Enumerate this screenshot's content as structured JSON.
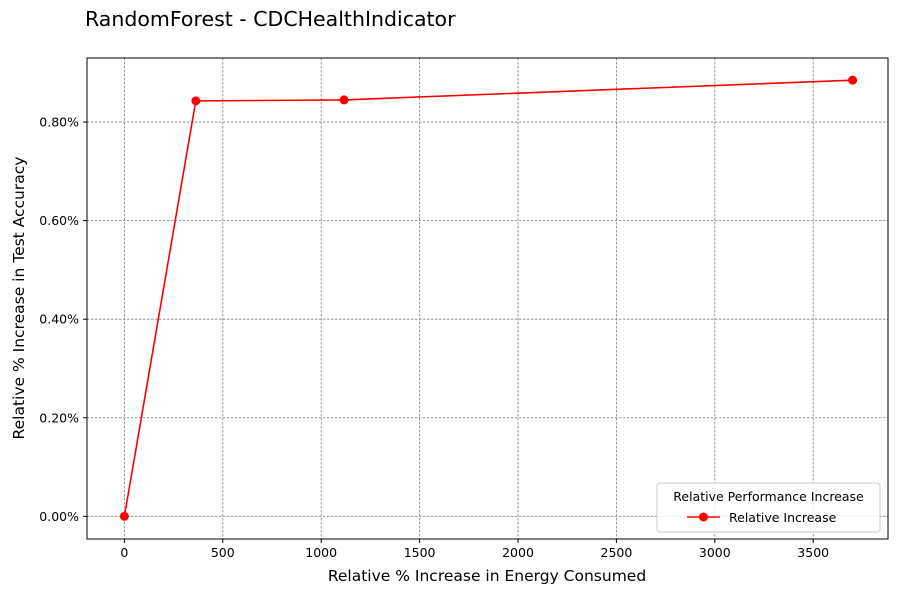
{
  "chart_data": {
    "type": "line",
    "title": "RandomForest - CDCHealthIndicator",
    "xlabel": "Relative % Increase in Energy Consumed",
    "ylabel": "Relative % Increase in Test Accuracy",
    "xlim": [
      -190,
      3880
    ],
    "ylim": [
      -0.046,
      0.93
    ],
    "x_ticks": [
      0,
      500,
      1000,
      1500,
      2000,
      2500,
      3000,
      3500
    ],
    "x_tick_labels": [
      "0",
      "500",
      "1000",
      "1500",
      "2000",
      "2500",
      "3000",
      "3500"
    ],
    "y_ticks": [
      0.0,
      0.2,
      0.4,
      0.6,
      0.8
    ],
    "y_tick_labels": [
      "0.00%",
      "0.20%",
      "0.40%",
      "0.60%",
      "0.80%"
    ],
    "grid": true,
    "legend": {
      "title": "Relative Performance Increase",
      "position": "bottom-right"
    },
    "series": [
      {
        "name": "Relative Increase",
        "color": "#ff0000",
        "marker": "circle",
        "x": [
          0,
          363,
          1116,
          3700
        ],
        "y": [
          0.0,
          0.843,
          0.845,
          0.885
        ]
      }
    ]
  }
}
